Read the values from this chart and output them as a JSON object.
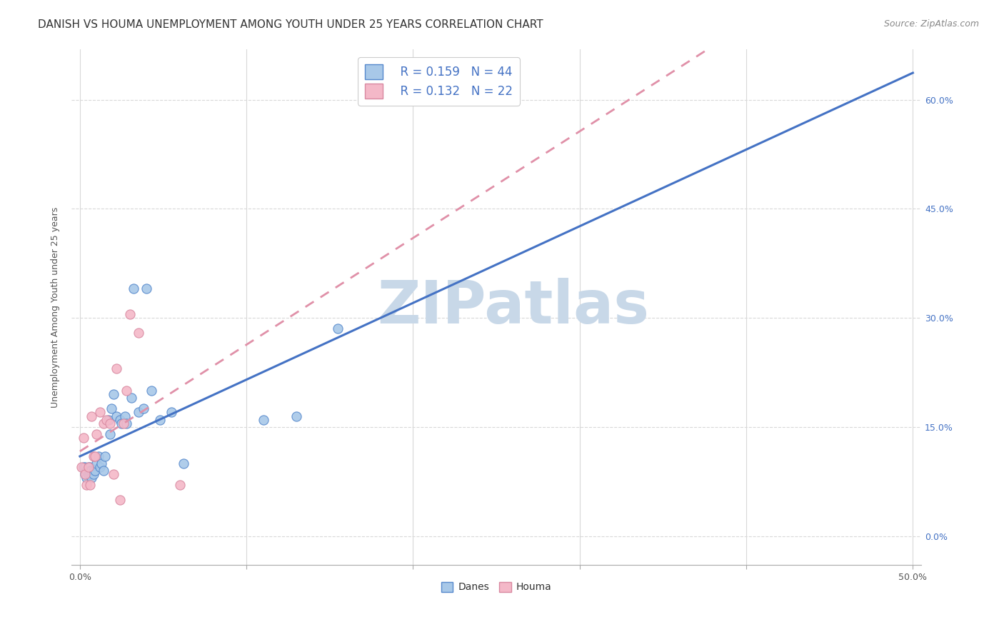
{
  "title": "DANISH VS HOUMA UNEMPLOYMENT AMONG YOUTH UNDER 25 YEARS CORRELATION CHART",
  "source": "Source: ZipAtlas.com",
  "ylabel": "Unemployment Among Youth under 25 years",
  "x_tick_labels_ends": [
    "0.0%",
    "50.0%"
  ],
  "y_ticks": [
    0.0,
    0.15,
    0.3,
    0.45,
    0.6
  ],
  "y_tick_labels_right": [
    "0.0%",
    "15.0%",
    "30.0%",
    "45.0%",
    "60.0%"
  ],
  "xlim": [
    -0.005,
    0.505
  ],
  "ylim": [
    -0.04,
    0.67
  ],
  "background_color": "#ffffff",
  "grid_color": "#d8d8d8",
  "danes_color": "#a8c8e8",
  "houma_color": "#f4b8c8",
  "danes_edge_color": "#5588cc",
  "houma_edge_color": "#d888a0",
  "danes_line_color": "#4472c4",
  "houma_line_color": "#e090a8",
  "legend_r_danes": "R = 0.159",
  "legend_n_danes": "N = 44",
  "legend_r_houma": "R = 0.132",
  "legend_n_houma": "N = 22",
  "danes_x": [
    0.002,
    0.003,
    0.003,
    0.004,
    0.004,
    0.005,
    0.005,
    0.005,
    0.006,
    0.006,
    0.006,
    0.007,
    0.007,
    0.007,
    0.008,
    0.008,
    0.009,
    0.01,
    0.011,
    0.012,
    0.013,
    0.014,
    0.015,
    0.017,
    0.018,
    0.019,
    0.02,
    0.022,
    0.024,
    0.025,
    0.027,
    0.028,
    0.031,
    0.032,
    0.035,
    0.038,
    0.04,
    0.043,
    0.048,
    0.055,
    0.062,
    0.11,
    0.13,
    0.155
  ],
  "danes_y": [
    0.095,
    0.085,
    0.095,
    0.08,
    0.09,
    0.095,
    0.085,
    0.09,
    0.095,
    0.09,
    0.085,
    0.085,
    0.09,
    0.08,
    0.09,
    0.085,
    0.09,
    0.1,
    0.11,
    0.095,
    0.1,
    0.09,
    0.11,
    0.16,
    0.14,
    0.175,
    0.195,
    0.165,
    0.16,
    0.155,
    0.165,
    0.155,
    0.19,
    0.34,
    0.17,
    0.175,
    0.34,
    0.2,
    0.16,
    0.17,
    0.1,
    0.16,
    0.165,
    0.285
  ],
  "houma_x": [
    0.001,
    0.002,
    0.003,
    0.004,
    0.005,
    0.006,
    0.007,
    0.008,
    0.009,
    0.01,
    0.012,
    0.014,
    0.016,
    0.018,
    0.02,
    0.022,
    0.024,
    0.026,
    0.028,
    0.03,
    0.035,
    0.06
  ],
  "houma_y": [
    0.095,
    0.135,
    0.085,
    0.07,
    0.095,
    0.07,
    0.165,
    0.11,
    0.11,
    0.14,
    0.17,
    0.155,
    0.16,
    0.155,
    0.085,
    0.23,
    0.05,
    0.155,
    0.2,
    0.305,
    0.28,
    0.07
  ],
  "title_fontsize": 11,
  "axis_label_fontsize": 9,
  "tick_fontsize": 9,
  "legend_fontsize": 12,
  "source_fontsize": 9,
  "watermark_text": "ZIPatlas",
  "watermark_color": "#c8d8e8",
  "watermark_fontsize": 60
}
